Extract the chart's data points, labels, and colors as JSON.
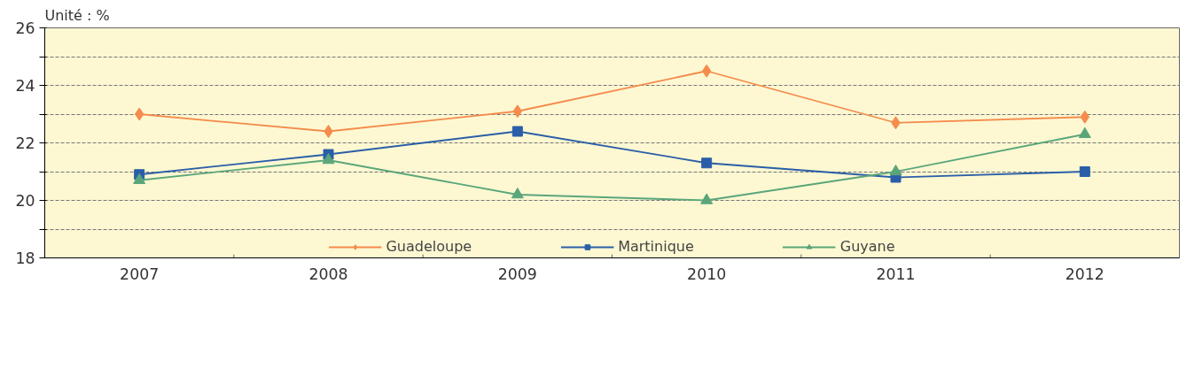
{
  "chart_data": {
    "type": "line",
    "ylabel": "Unité :  %",
    "categories": [
      "2007",
      "2008",
      "2009",
      "2010",
      "2011",
      "2012"
    ],
    "series": [
      {
        "name": "Guadeloupe",
        "color": "#f58b4c",
        "marker": "diamond",
        "values": [
          23.0,
          22.4,
          23.1,
          24.5,
          22.7,
          22.9
        ]
      },
      {
        "name": "Martinique",
        "color": "#2a5ea8",
        "marker": "square",
        "values": [
          20.9,
          21.6,
          22.4,
          21.3,
          20.8,
          21.0
        ]
      },
      {
        "name": "Guyane",
        "color": "#5aa67a",
        "marker": "triangle",
        "values": [
          20.7,
          21.4,
          20.2,
          20.0,
          21.0,
          22.3
        ]
      }
    ],
    "ylim": [
      18,
      26
    ],
    "yticks": [
      18,
      {
        "value": 19,
        "label": null
      },
      20,
      {
        "value": 21,
        "label": null
      },
      22,
      {
        "value": 23,
        "label": null
      },
      24,
      {
        "value": 25,
        "label": null
      },
      26
    ],
    "grid": "y",
    "legend": "bottom",
    "line_style": "solid"
  }
}
